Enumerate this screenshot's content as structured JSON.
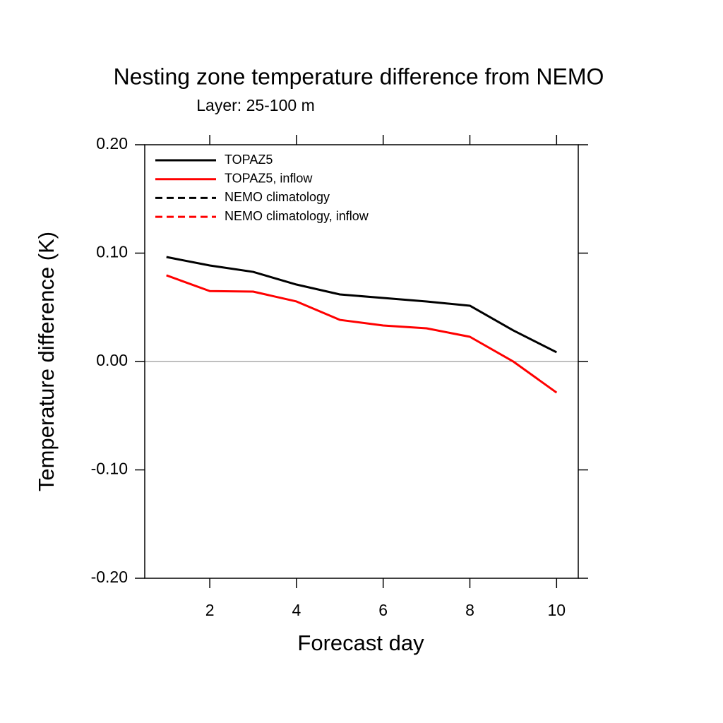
{
  "chart_data": {
    "type": "line",
    "title": "Nesting zone temperature difference from NEMO",
    "subtitle": "Layer: 25-100 m",
    "xlabel": "Forecast day",
    "ylabel": "Temperature difference (K)",
    "x": [
      1,
      2,
      3,
      4,
      5,
      6,
      7,
      8,
      9,
      10
    ],
    "series": [
      {
        "name": "TOPAZ5",
        "color": "#000000",
        "dash": false,
        "values": [
          0.0964,
          0.0886,
          0.0827,
          0.071,
          0.0619,
          0.0586,
          0.0554,
          0.0515,
          0.0287,
          0.0085
        ]
      },
      {
        "name": "TOPAZ5, inflow",
        "color": "#ff0000",
        "dash": false,
        "values": [
          0.0795,
          0.065,
          0.0645,
          0.0554,
          0.0384,
          0.0332,
          0.0306,
          0.0228,
          0,
          -0.0287
        ]
      },
      {
        "name": "NEMO climatology",
        "color": "#000000",
        "dash": true,
        "values": [
          null,
          null,
          null,
          null,
          null,
          null,
          null,
          null,
          null,
          null
        ]
      },
      {
        "name": "NEMO climatology, inflow",
        "color": "#ff0000",
        "dash": true,
        "values": [
          null,
          null,
          null,
          null,
          null,
          null,
          null,
          null,
          null,
          null
        ]
      }
    ],
    "xlim": [
      0.5,
      10.5
    ],
    "xticks": [
      2,
      4,
      6,
      8,
      10
    ],
    "ylim": [
      -0.2,
      0.2
    ],
    "yticks": [
      {
        "value": -0.2,
        "label": "-0.20"
      },
      {
        "value": -0.1,
        "label": "-0.10"
      },
      {
        "value": 0,
        "label": "0.00"
      },
      {
        "value": 0.1,
        "label": "0.10"
      },
      {
        "value": 0.2,
        "label": "0.20"
      }
    ],
    "zero_line": true,
    "legend": "upper left"
  }
}
